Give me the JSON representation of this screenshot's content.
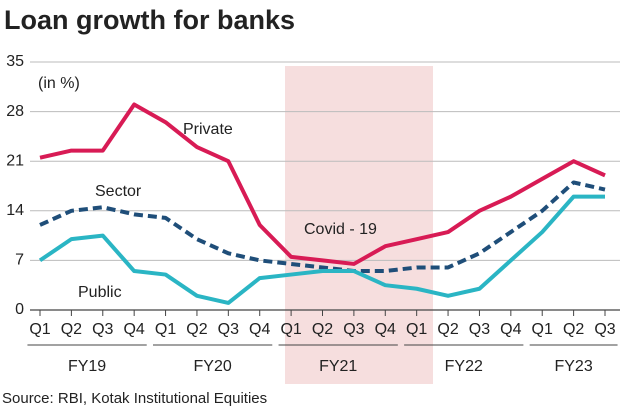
{
  "chart_data": {
    "type": "line",
    "title": "Loan growth for banks",
    "y_label": "(in %)",
    "source": "Source: RBI, Kotak Institutional Equities",
    "annotation": "Covid - 19",
    "categories": [
      "Q1",
      "Q2",
      "Q3",
      "Q4",
      "Q1",
      "Q2",
      "Q3",
      "Q4",
      "Q1",
      "Q2",
      "Q3",
      "Q4",
      "Q1",
      "Q2",
      "Q3",
      "Q4",
      "Q1",
      "Q2",
      "Q3"
    ],
    "groups": [
      "FY19",
      "FY20",
      "FY21",
      "FY22",
      "FY23"
    ],
    "series": [
      {
        "name": "Private",
        "color": "#d81b55",
        "dashed": false,
        "values": [
          21.5,
          22.5,
          22.5,
          29,
          26.5,
          23,
          21,
          12,
          7.5,
          7,
          6.5,
          9,
          10,
          11,
          14,
          16,
          18.5,
          21,
          19
        ]
      },
      {
        "name": "Sector",
        "color": "#1f4e79",
        "dashed": true,
        "values": [
          12,
          14,
          14.5,
          13.5,
          13,
          10,
          8,
          7,
          6.5,
          6,
          5.5,
          5.5,
          6,
          6,
          8,
          11,
          14,
          18,
          17
        ]
      },
      {
        "name": "Public",
        "color": "#2ab5c4",
        "dashed": false,
        "values": [
          7,
          10,
          10.5,
          5.5,
          5,
          2,
          1,
          4.5,
          5,
          5.5,
          5.5,
          3.5,
          3,
          2,
          3,
          7,
          11,
          16,
          16
        ]
      }
    ],
    "ylim": [
      0,
      35
    ],
    "yticks": [
      0,
      7,
      14,
      21,
      28,
      35
    ],
    "grid": true
  }
}
